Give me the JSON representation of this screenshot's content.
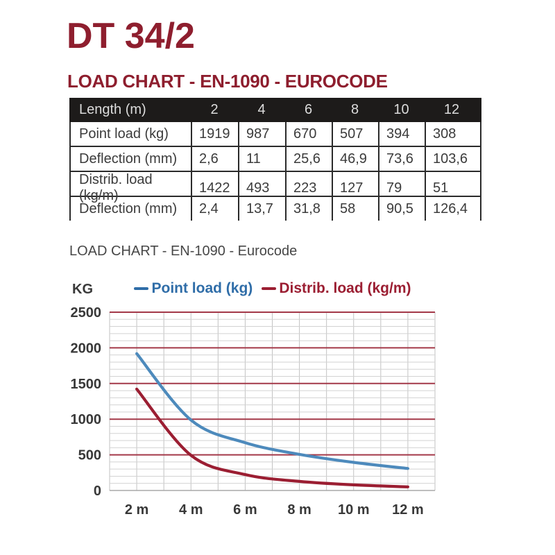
{
  "page": {
    "title": "DT 34/2",
    "heading": "LOAD CHART - EN-1090 - EUROCODE",
    "subheading": "LOAD CHART - EN-1090 - Eurocode"
  },
  "colors": {
    "accent_red": "#8e1e2e",
    "table_header_bg": "#1d1b1a",
    "table_header_text": "#dcdcdc",
    "table_text": "#3b3b3b",
    "table_border": "#2b2b2b",
    "grid_major": "#a33848",
    "grid_minor": "#d2d2d2",
    "grid_vertical": "#c2c2c2",
    "axis_line": "#a8a8a8",
    "axis_text": "#383838"
  },
  "table": {
    "header": [
      "Length (m)",
      "2",
      "4",
      "6",
      "8",
      "10",
      "12"
    ],
    "rows": [
      [
        "Point load (kg)",
        "1919",
        "987",
        "670",
        "507",
        "394",
        "308"
      ],
      [
        "Deflection (mm)",
        "2,6",
        "11",
        "25,6",
        "46,9",
        "73,6",
        "103,6"
      ],
      [
        "Distrib. load (kg/m)",
        "1422",
        "493",
        "223",
        "127",
        "79",
        "51"
      ],
      [
        "Deflection (mm)",
        "2,4",
        "13,7",
        "31,8",
        "58",
        "90,5",
        "126,4"
      ]
    ]
  },
  "chart_data": {
    "type": "line",
    "title": "LOAD CHART - EN-1090 - Eurocode",
    "ylabel": "KG",
    "x": [
      2,
      4,
      6,
      8,
      10,
      12
    ],
    "series": [
      {
        "name": "Point load (kg)",
        "color": "#4d8abc",
        "label_color": "#2f6da8",
        "values": [
          1919,
          987,
          670,
          507,
          394,
          308
        ]
      },
      {
        "name": "Distrib. load (kg/m)",
        "color": "#9b1e32",
        "label_color": "#9b1e32",
        "values": [
          1422,
          493,
          223,
          127,
          79,
          51
        ]
      }
    ],
    "xlim": [
      1,
      13
    ],
    "ylim": [
      0,
      2500
    ],
    "x_grid_step": 1,
    "y_major_step": 500,
    "y_minor_step": 100,
    "y_ticks": [
      0,
      500,
      1000,
      1500,
      2000,
      2500
    ],
    "x_ticks": [
      {
        "v": 2,
        "label": "2 m"
      },
      {
        "v": 4,
        "label": "4 m"
      },
      {
        "v": 6,
        "label": "6 m"
      },
      {
        "v": 8,
        "label": "8 m"
      },
      {
        "v": 10,
        "label": "10 m"
      },
      {
        "v": 12,
        "label": "12 m"
      }
    ],
    "grid": true,
    "legend_position": "top"
  }
}
